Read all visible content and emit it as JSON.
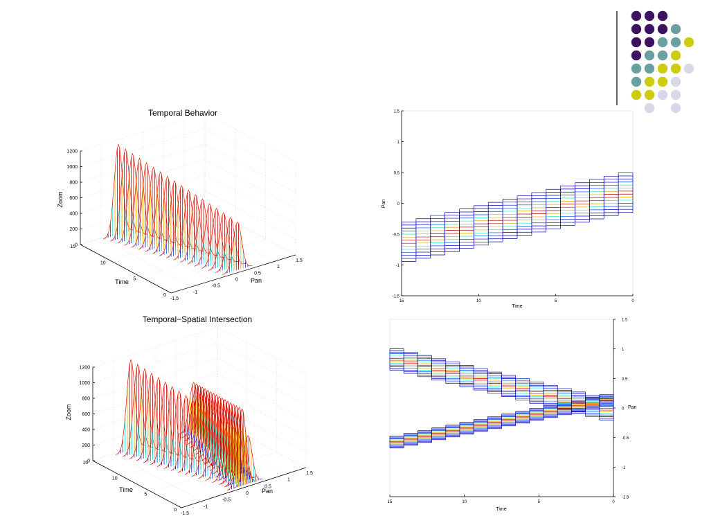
{
  "decoration": {
    "dot_colors": {
      "purple": "#3c1361",
      "teal": "#6aa0a0",
      "yellow": "#cccc11",
      "lavender": "#d8d8ea"
    },
    "rule_color": "#333333"
  },
  "chart_data": [
    {
      "id": "temporal-behavior-3d",
      "type": "3d-waterfall",
      "title": "Temporal Behavior",
      "xlabel": "Pan",
      "ylabel": "Time",
      "zlabel": "Zoom",
      "xlim": [
        -1.5,
        1.5
      ],
      "ylim": [
        0,
        15
      ],
      "zlim": [
        0,
        1200
      ],
      "x_ticks": [
        "-1.5",
        "-1",
        "-0.5",
        "0",
        "0.5",
        "1",
        "1.5"
      ],
      "y_ticks": [
        "0",
        "5",
        "10",
        "15"
      ],
      "z_ticks": [
        "0",
        "200",
        "400",
        "600",
        "800",
        "1000",
        "1200"
      ],
      "grid": true,
      "colormap": "jet",
      "series": [
        {
          "pan_center_at_time_15": -0.65,
          "pan_center_at_time_0": 0.2,
          "peak_zoom_at_time_15": 1170,
          "peak_zoom_at_time_0": 600
        }
      ]
    },
    {
      "id": "temporal-behavior-2d",
      "type": "line",
      "title": "",
      "xlabel": "Time",
      "ylabel": "Pan",
      "xlim": [
        15,
        0
      ],
      "ylim": [
        -1.5,
        1.5
      ],
      "x_ticks": [
        "15",
        "10",
        "5",
        "0"
      ],
      "y_ticks": [
        "1.5",
        "1",
        "0.5",
        "0",
        "-0.5",
        "-1",
        "-1.5"
      ],
      "y_axis_side": "left",
      "colormap": "jet",
      "series": [
        {
          "band_center": {
            "x": [
              15,
              0
            ],
            "y": [
              -0.65,
              0.2
            ]
          },
          "band_halfwidth": 0.32
        }
      ]
    },
    {
      "id": "temporal-spatial-intersection-3d",
      "type": "3d-waterfall",
      "title": "Temporal−Spatial Intersection",
      "xlabel": "Pan",
      "ylabel": "Time",
      "zlabel": "Zoom",
      "xlim": [
        -1.5,
        1.5
      ],
      "ylim": [
        0,
        15
      ],
      "zlim": [
        0,
        1200
      ],
      "x_ticks": [
        "-1.5",
        "-1",
        "-0.5",
        "0",
        "0.5",
        "1",
        "1.5"
      ],
      "y_ticks": [
        "0",
        "5",
        "10",
        "15"
      ],
      "z_ticks": [
        "0",
        "200",
        "400",
        "600",
        "800",
        "1000",
        "1200"
      ],
      "grid": true,
      "colormap": "jet",
      "series": [
        {
          "pan_center_at_time_15": -0.65,
          "pan_center_at_time_0": 0.2,
          "peak_zoom_at_time_15": 1170,
          "peak_zoom_at_time_0": 600
        },
        {
          "pan_center_at_time_15": 0.9,
          "pan_center_at_time_0": 0.0,
          "peak_zoom_at_time_15": 600,
          "peak_zoom_at_time_0": 1000
        }
      ]
    },
    {
      "id": "temporal-spatial-intersection-2d",
      "type": "line",
      "title": "",
      "xlabel": "Time",
      "ylabel": "Pan",
      "xlim": [
        15,
        0
      ],
      "ylim": [
        -1.5,
        1.5
      ],
      "x_ticks": [
        "15",
        "10",
        "5",
        "0"
      ],
      "y_ticks": [
        "1.5",
        "1",
        "0.5",
        "0",
        "-0.5",
        "-1",
        "-1.5"
      ],
      "y_axis_side": "right",
      "colormap": "jet",
      "series": [
        {
          "band_center": {
            "x": [
              15,
              0
            ],
            "y": [
              -0.6,
              0.15
            ]
          },
          "band_halfwidth": 0.1
        },
        {
          "band_center": {
            "x": [
              15,
              0
            ],
            "y": [
              0.85,
              -0.05
            ]
          },
          "band_halfwidth": 0.18
        }
      ]
    }
  ]
}
